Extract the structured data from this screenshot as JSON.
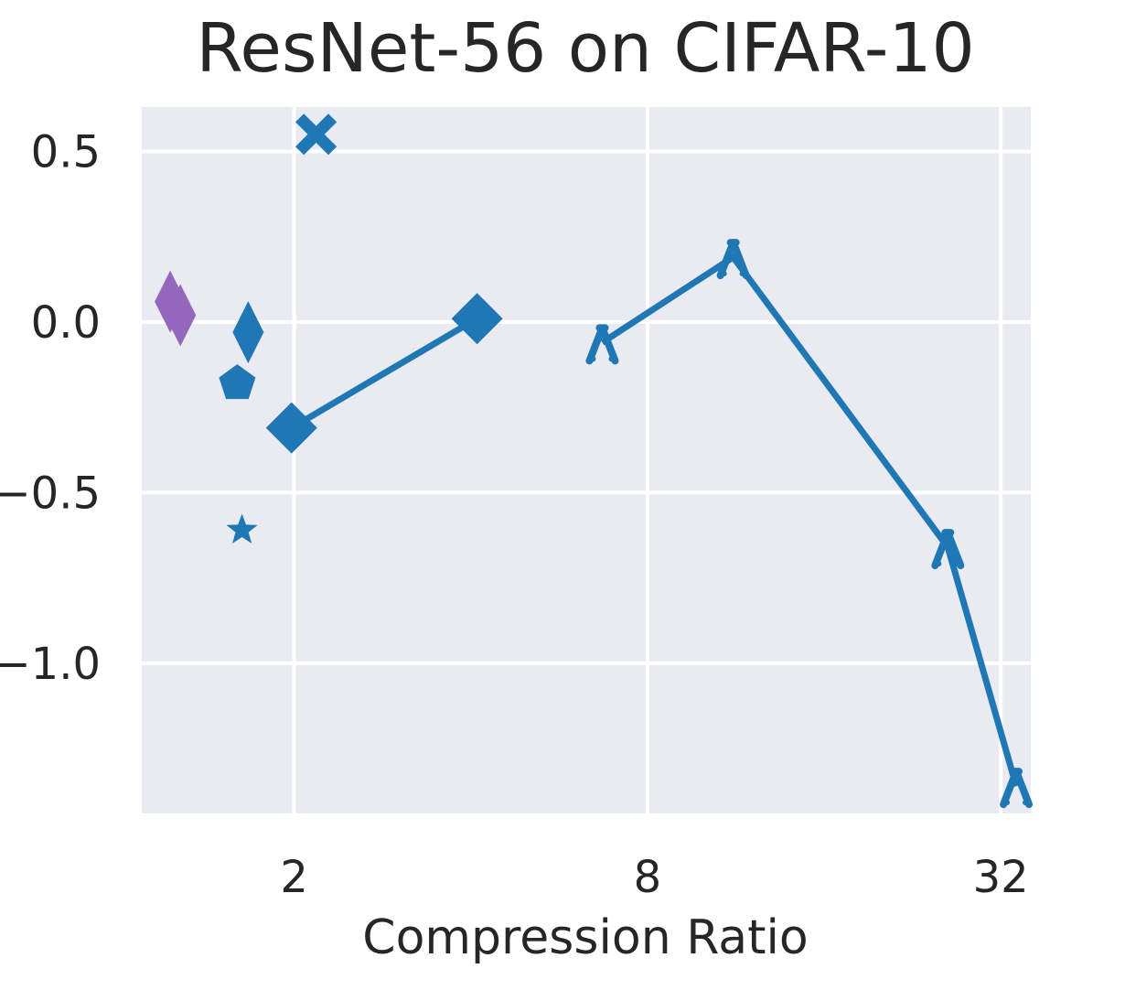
{
  "chart_data": {
    "type": "scatter",
    "title": "ResNet-56 on CIFAR-10",
    "xlabel": "Compression Ratio",
    "ylabel": "",
    "x_scale": "log2",
    "xlim": [
      1.1,
      36
    ],
    "ylim": [
      -1.44,
      0.63
    ],
    "x_ticks": [
      2,
      8,
      32
    ],
    "x_tick_labels": [
      "2",
      "8",
      "32"
    ],
    "y_ticks": [
      0.5,
      0.0,
      -0.5,
      -1.0
    ],
    "y_tick_labels": [
      "0.5",
      "0.0",
      "−0.5",
      "−1.0"
    ],
    "grid": true,
    "colors": {
      "blue": "#1f77b4",
      "purple": "#9467bd",
      "plot_bg": "#eaeaf2",
      "grid": "#ffffff"
    },
    "lines": [
      {
        "marker": "diamond",
        "color": "blue",
        "points": [
          [
            1.98,
            -0.31
          ],
          [
            4.1,
            0.01
          ]
        ]
      },
      {
        "marker": "caret-up",
        "color": "blue",
        "points": [
          [
            6.7,
            -0.06
          ],
          [
            11.2,
            0.19
          ],
          [
            26.0,
            -0.66
          ],
          [
            34.0,
            -1.36
          ]
        ]
      }
    ],
    "points": [
      {
        "marker": "thin-diamond",
        "color": "purple",
        "x": 1.23,
        "y": 0.06
      },
      {
        "marker": "thin-diamond",
        "color": "purple",
        "x": 1.28,
        "y": 0.02
      },
      {
        "marker": "thin-diamond",
        "color": "blue",
        "x": 1.67,
        "y": -0.03
      },
      {
        "marker": "pentagon",
        "color": "blue",
        "x": 1.6,
        "y": -0.18
      },
      {
        "marker": "star",
        "color": "blue",
        "x": 1.63,
        "y": -0.61
      },
      {
        "marker": "x-filled",
        "color": "blue",
        "x": 2.18,
        "y": 0.55
      }
    ]
  }
}
